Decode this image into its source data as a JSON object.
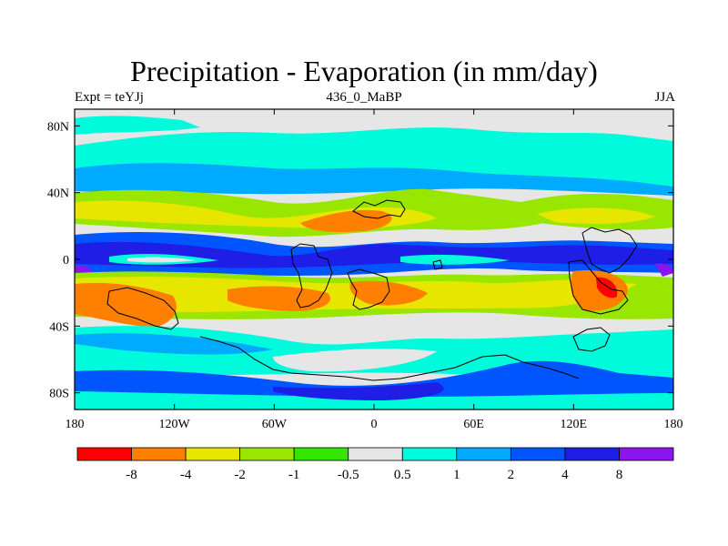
{
  "title": "Precipitation - Evaporation (in mm/day)",
  "left_label": "Expt = teYJj",
  "center_label": "436_0_MaBP",
  "right_label": "JJA",
  "map": {
    "lon_range": [
      -180,
      180
    ],
    "lat_range": [
      -90,
      90
    ],
    "x_ticks": [
      {
        "value": -180,
        "label": "180"
      },
      {
        "value": -120,
        "label": "120W"
      },
      {
        "value": -60,
        "label": "60W"
      },
      {
        "value": 0,
        "label": "0"
      },
      {
        "value": 60,
        "label": "60E"
      },
      {
        "value": 120,
        "label": "120E"
      },
      {
        "value": 180,
        "label": "180"
      }
    ],
    "y_ticks": [
      {
        "value": 80,
        "label": "80N"
      },
      {
        "value": 40,
        "label": "40N"
      },
      {
        "value": 0,
        "label": "0"
      },
      {
        "value": -40,
        "label": "40S"
      },
      {
        "value": -80,
        "label": "80S"
      }
    ]
  },
  "colorbar": {
    "colors": [
      "#ff0000",
      "#ff7f00",
      "#e6e600",
      "#99e600",
      "#33e600",
      "#e6e6e6",
      "#00fadc",
      "#00aaff",
      "#0055ff",
      "#1e1ee6",
      "#8c14f0"
    ],
    "labels": [
      "-8",
      "-4",
      "-2",
      "-1",
      "-0.5",
      "0.5",
      "1",
      "2",
      "4",
      "8"
    ]
  }
}
